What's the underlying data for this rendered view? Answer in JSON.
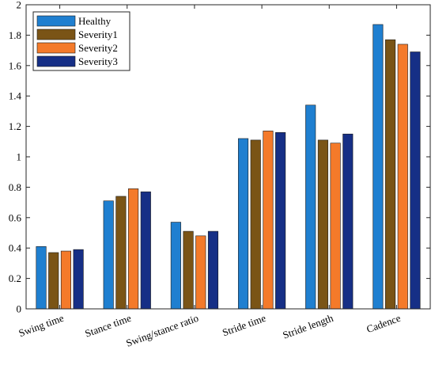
{
  "chart_data": {
    "type": "bar",
    "categories": [
      "Swing time",
      "Stance time",
      "Swing/stance ratio",
      "Stride time",
      "Stride length",
      "Cadence"
    ],
    "series": [
      {
        "name": "Healthy",
        "color": "#1f7fd0",
        "values": [
          0.41,
          0.71,
          0.57,
          1.12,
          1.34,
          1.87
        ]
      },
      {
        "name": "Severity1",
        "color": "#7a5416",
        "values": [
          0.37,
          0.74,
          0.51,
          1.11,
          1.11,
          1.77
        ]
      },
      {
        "name": "Severity2",
        "color": "#f47a2a",
        "values": [
          0.38,
          0.79,
          0.48,
          1.17,
          1.09,
          1.74
        ]
      },
      {
        "name": "Severity3",
        "color": "#162f86",
        "values": [
          0.39,
          0.77,
          0.51,
          1.16,
          1.15,
          1.69
        ]
      }
    ],
    "title": "",
    "xlabel": "",
    "ylabel": "",
    "ylim": [
      0,
      2
    ],
    "yticks": [
      "0",
      "0.2",
      "0.4",
      "0.6",
      "0.8",
      "1",
      "1.2",
      "1.4",
      "1.6",
      "1.8",
      "2"
    ],
    "grid": false,
    "legend_position": "top-left"
  }
}
